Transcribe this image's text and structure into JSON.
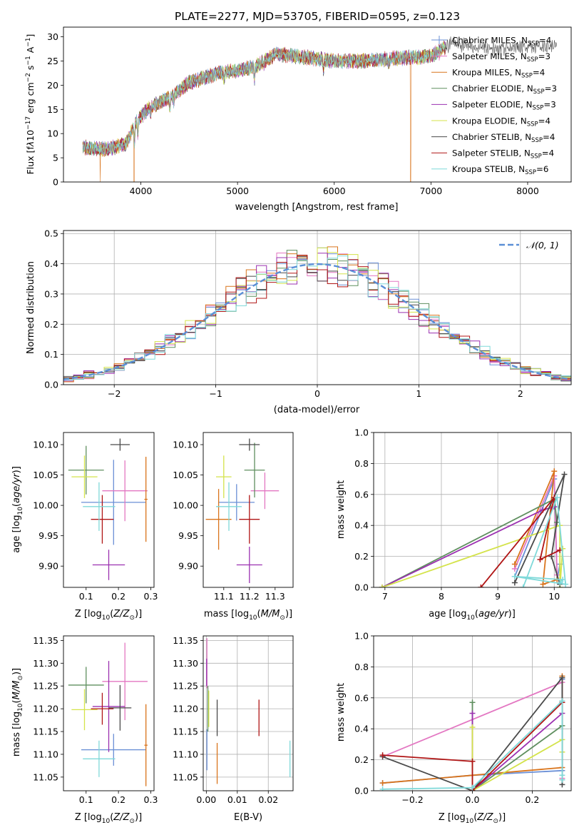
{
  "figure_title": "PLATE=2277, MJD=53705, FIBERID=0595, z=0.123",
  "colors": {
    "Chabrier MILES": "#6a8fd6",
    "Salpeter MILES": "#e377c2",
    "Kroupa MILES": "#d9741c",
    "Chabrier ELODIE": "#5f8f5f",
    "Salpeter ELODIE": "#9b30b0",
    "Kroupa ELODIE": "#d4e34a",
    "Chabrier STELIB": "#4a4a4a",
    "Salpeter STELIB": "#b01515",
    "Kroupa STELIB": "#7fd9d9"
  },
  "legend_labels": [
    {
      "pre": "Chabrier MILES, N",
      "sub": "SSP",
      "post": "=4"
    },
    {
      "pre": "Salpeter MILES, N",
      "sub": "SSP",
      "post": "=3"
    },
    {
      "pre": "Kroupa MILES, N",
      "sub": "SSP",
      "post": "=4"
    },
    {
      "pre": "Chabrier ELODIE, N",
      "sub": "SSP",
      "post": "=3"
    },
    {
      "pre": "Salpeter ELODIE, N",
      "sub": "SSP",
      "post": "=3"
    },
    {
      "pre": "Kroupa ELODIE, N",
      "sub": "SSP",
      "post": "=4"
    },
    {
      "pre": "Chabrier STELIB, N",
      "sub": "SSP",
      "post": "=4"
    },
    {
      "pre": "Salpeter STELIB, N",
      "sub": "SSP",
      "post": "=4"
    },
    {
      "pre": "Kroupa STELIB, N",
      "sub": "SSP",
      "post": "=6"
    }
  ],
  "chart_data": [
    {
      "id": "spectrum",
      "type": "line",
      "xlabel": "wavelength [Angstrom, rest frame]",
      "ylabel": "Flux [f_λ 10^-17 erg cm^-2 s^-1 A^-1]",
      "xlim": [
        3200,
        8450
      ],
      "ylim": [
        0,
        32
      ],
      "xticks": [
        4000,
        5000,
        6000,
        7000,
        8000
      ],
      "yticks": [
        0,
        5,
        10,
        15,
        20,
        25,
        30
      ],
      "continuum_knots": [
        [
          3400,
          7.2
        ],
        [
          3600,
          6.8
        ],
        [
          3700,
          7.0
        ],
        [
          3850,
          8.0
        ],
        [
          3950,
          12.5
        ],
        [
          4100,
          15.5
        ],
        [
          4300,
          17.5
        ],
        [
          4500,
          20.5
        ],
        [
          4800,
          22.5
        ],
        [
          5000,
          23.0
        ],
        [
          5200,
          24.0
        ],
        [
          5400,
          26.5
        ],
        [
          5800,
          25.5
        ],
        [
          6000,
          25.0
        ],
        [
          6300,
          25.0
        ],
        [
          6600,
          25.5
        ],
        [
          7000,
          26.0
        ],
        [
          7200,
          28.5
        ],
        [
          7500,
          28.0
        ],
        [
          7800,
          27.5
        ],
        [
          8000,
          28.0
        ],
        [
          8200,
          28.0
        ]
      ],
      "absorption_lines": [
        [
          3934,
          3.5
        ],
        [
          3969,
          3.0
        ],
        [
          4101,
          1.5
        ],
        [
          4300,
          2.5
        ],
        [
          4340,
          1.5
        ],
        [
          4861,
          1.5
        ],
        [
          5175,
          2.5
        ],
        [
          5270,
          1.0
        ],
        [
          5890,
          2.0
        ],
        [
          6563,
          1.5
        ]
      ],
      "model_ranges": [
        [
          3400,
          7150
        ],
        [
          3400,
          7150
        ],
        [
          3400,
          7150
        ],
        [
          3400,
          7150
        ],
        [
          3400,
          7150
        ],
        [
          3400,
          7150
        ],
        [
          3400,
          8300
        ],
        [
          3400,
          7150
        ],
        [
          3400,
          7150
        ]
      ],
      "dropouts": [
        {
          "model": 2,
          "x": [
            3580,
            3930,
            6790,
            7420
          ]
        }
      ],
      "legend_loc": "upper right"
    },
    {
      "id": "residuals",
      "type": "histogram",
      "xlabel": "(data-model)/error",
      "ylabel": "Normed distribution",
      "xlim": [
        -2.5,
        2.5
      ],
      "ylim": [
        0,
        0.51
      ],
      "xticks": [
        -2,
        -1,
        0,
        1,
        2
      ],
      "yticks": [
        0,
        0.1,
        0.2,
        0.3,
        0.4,
        0.5
      ],
      "bin_width": 0.1,
      "reference": {
        "name": "N(0,1)",
        "mean": 0,
        "sigma": 1
      },
      "grid": true,
      "legend_loc": "upper right"
    },
    {
      "id": "age_vs_Z",
      "type": "errorbar",
      "xlabel": "Z [log10(Z/Z⊙)]",
      "ylabel": "age  [log10(age/yr)]",
      "xlim": [
        0.03,
        0.31
      ],
      "ylim": [
        9.865,
        10.12
      ],
      "xticks": [
        0.1,
        0.2,
        0.3
      ],
      "yticks": [
        9.9,
        9.95,
        10.0,
        10.05,
        10.1
      ],
      "points": [
        {
          "x": 0.185,
          "xerr": 0.1,
          "y": 10.005,
          "yerr": 0.07
        },
        {
          "x": 0.22,
          "xerr": 0.07,
          "y": 10.024,
          "yerr": 0.05
        },
        {
          "x": 0.285,
          "xerr": 0.005,
          "y": 10.01,
          "yerr": 0.07
        },
        {
          "x": 0.1,
          "xerr": 0.055,
          "y": 10.058,
          "yerr": 0.04
        },
        {
          "x": 0.17,
          "xerr": 0.05,
          "y": 9.902,
          "yerr": 0.025
        },
        {
          "x": 0.095,
          "xerr": 0.04,
          "y": 10.047,
          "yerr": 0.035
        },
        {
          "x": 0.205,
          "xerr": 0.03,
          "y": 10.1,
          "yerr": 0.01
        },
        {
          "x": 0.15,
          "xerr": 0.035,
          "y": 9.977,
          "yerr": 0.04
        },
        {
          "x": 0.14,
          "xerr": 0.05,
          "y": 9.998,
          "yerr": 0.04
        }
      ]
    },
    {
      "id": "age_vs_mass",
      "type": "errorbar",
      "xlabel": "mass [log10(M/M⊙)]",
      "ylabel": "",
      "xlim": [
        11.02,
        11.37
      ],
      "ylim": [
        9.865,
        10.12
      ],
      "xticks": [
        11.1,
        11.2,
        11.3
      ],
      "yticks": [
        9.9,
        9.95,
        10.0,
        10.05,
        10.1
      ],
      "points": [
        {
          "x": 11.15,
          "xerr": 0.07,
          "y": 10.005,
          "yerr": 0.03
        },
        {
          "x": 11.26,
          "xerr": 0.055,
          "y": 10.024,
          "yerr": 0.03
        },
        {
          "x": 11.08,
          "xerr": 0.05,
          "y": 9.977,
          "yerr": 0.05
        },
        {
          "x": 11.22,
          "xerr": 0.04,
          "y": 10.058,
          "yerr": 0.045
        },
        {
          "x": 11.2,
          "xerr": 0.05,
          "y": 9.902,
          "yerr": 0.03
        },
        {
          "x": 11.1,
          "xerr": 0.03,
          "y": 10.047,
          "yerr": 0.035
        },
        {
          "x": 11.2,
          "xerr": 0.04,
          "y": 10.1,
          "yerr": 0.01
        },
        {
          "x": 11.2,
          "xerr": 0.04,
          "y": 9.977,
          "yerr": 0.04
        },
        {
          "x": 11.12,
          "xerr": 0.05,
          "y": 9.998,
          "yerr": 0.04
        }
      ]
    },
    {
      "id": "weight_vs_age",
      "type": "line",
      "xlabel": "age  [log10(age/yr)]",
      "ylabel": "mass weight",
      "xlim": [
        6.8,
        10.3
      ],
      "ylim": [
        0,
        1
      ],
      "xticks": [
        7,
        8,
        9,
        10
      ],
      "yticks": [
        0,
        0.2,
        0.4,
        0.6,
        0.8,
        1.0
      ],
      "grid": true,
      "series": [
        {
          "points": [
            [
              9.3,
              0.07
            ],
            [
              10.0,
              0.7
            ],
            [
              10.05,
              0.05
            ],
            [
              10.1,
              0.15
            ]
          ]
        },
        {
          "points": [
            [
              9.3,
              0.12
            ],
            [
              10.0,
              0.72
            ],
            [
              10.05,
              0.08
            ]
          ]
        },
        {
          "points": [
            [
              9.3,
              0.15
            ],
            [
              10.0,
              0.75
            ],
            [
              9.8,
              0.02
            ],
            [
              10.05,
              0.05
            ]
          ]
        },
        {
          "points": [
            [
              6.95,
              0.0
            ],
            [
              10.0,
              0.57
            ],
            [
              10.05,
              0.42
            ]
          ]
        },
        {
          "points": [
            [
              6.95,
              0.0
            ],
            [
              9.8,
              0.5
            ],
            [
              10.0,
              0.52
            ]
          ]
        },
        {
          "points": [
            [
              6.95,
              0.0
            ],
            [
              10.1,
              0.4
            ],
            [
              10.1,
              0.0
            ],
            [
              10.15,
              0.25
            ]
          ]
        },
        {
          "points": [
            [
              9.3,
              0.03
            ],
            [
              10.18,
              0.73
            ],
            [
              9.95,
              0.2
            ],
            [
              10.1,
              0.02
            ]
          ]
        },
        {
          "points": [
            [
              8.7,
              0.0
            ],
            [
              10.0,
              0.58
            ],
            [
              9.75,
              0.18
            ],
            [
              10.1,
              0.24
            ]
          ]
        },
        {
          "points": [
            [
              9.45,
              0.0
            ],
            [
              10.05,
              0.58
            ],
            [
              10.2,
              0.02
            ],
            [
              9.3,
              0.07
            ],
            [
              10.15,
              0.05
            ],
            [
              10.1,
              0.03
            ]
          ]
        }
      ]
    },
    {
      "id": "mass_vs_Z",
      "type": "errorbar",
      "xlabel": "Z [log10(Z/Z⊙)]",
      "ylabel": "mass [log10(M/M⊙)]",
      "xlim": [
        0.03,
        0.31
      ],
      "ylim": [
        11.02,
        11.36
      ],
      "xticks": [
        0.1,
        0.2,
        0.3
      ],
      "yticks": [
        11.05,
        11.1,
        11.15,
        11.2,
        11.25,
        11.3,
        11.35
      ],
      "points": [
        {
          "x": 0.185,
          "xerr": 0.1,
          "y": 11.11,
          "yerr": 0.035
        },
        {
          "x": 0.22,
          "xerr": 0.07,
          "y": 11.26,
          "yerr": 0.085
        },
        {
          "x": 0.285,
          "xerr": 0.005,
          "y": 11.12,
          "yerr": 0.09
        },
        {
          "x": 0.1,
          "xerr": 0.055,
          "y": 11.252,
          "yerr": 0.04
        },
        {
          "x": 0.17,
          "xerr": 0.05,
          "y": 11.205,
          "yerr": 0.1
        },
        {
          "x": 0.095,
          "xerr": 0.04,
          "y": 11.198,
          "yerr": 0.045
        },
        {
          "x": 0.205,
          "xerr": 0.035,
          "y": 11.202,
          "yerr": 0.05
        },
        {
          "x": 0.15,
          "xerr": 0.035,
          "y": 11.2,
          "yerr": 0.035
        },
        {
          "x": 0.14,
          "xerr": 0.05,
          "y": 11.09,
          "yerr": 0.04
        }
      ]
    },
    {
      "id": "mass_vs_ebv",
      "type": "errorbar",
      "xlabel": "E(B-V)",
      "ylabel": "",
      "xlim": [
        -0.001,
        0.028
      ],
      "ylim": [
        11.02,
        11.36
      ],
      "xticks": [
        0.0,
        0.01,
        0.02
      ],
      "yticks": [
        11.05,
        11.1,
        11.15,
        11.2,
        11.25,
        11.3,
        11.35
      ],
      "grid": true,
      "points": [
        {
          "x": 0.0002,
          "xerr": 0.0,
          "y": 11.11,
          "yerr": 0.045
        },
        {
          "x": 0.0002,
          "xerr": 0.0,
          "y": 11.3,
          "yerr": 0.055
        },
        {
          "x": 0.0035,
          "xerr": 0.0,
          "y": 11.08,
          "yerr": 0.045
        },
        {
          "x": 0.0005,
          "xerr": 0.0,
          "y": 11.2,
          "yerr": 0.05
        },
        {
          "x": 0.0001,
          "xerr": 0.0,
          "y": 11.28,
          "yerr": 0.03
        },
        {
          "x": 0.0008,
          "xerr": 0.0,
          "y": 11.2,
          "yerr": 0.04
        },
        {
          "x": 0.0035,
          "xerr": 0.0,
          "y": 11.18,
          "yerr": 0.04
        },
        {
          "x": 0.017,
          "xerr": 0.0,
          "y": 11.18,
          "yerr": 0.04
        },
        {
          "x": 0.027,
          "xerr": 0.0,
          "y": 11.09,
          "yerr": 0.04
        }
      ]
    },
    {
      "id": "weight_vs_Z",
      "type": "line",
      "xlabel": "Z [log10(Z/Z⊙)]",
      "ylabel": "mass weight",
      "xlim": [
        -0.33,
        0.33
      ],
      "ylim": [
        0,
        1
      ],
      "xticks": [
        -0.2,
        0.0,
        0.2
      ],
      "yticks": [
        0,
        0.2,
        0.4,
        0.6,
        0.8,
        1.0
      ],
      "grid": true,
      "series": [
        {
          "points": [
            [
              -0.3,
              0.05
            ],
            [
              0.0,
              0.1
            ],
            [
              0.3,
              0.13
            ],
            [
              0.3,
              0.72
            ]
          ]
        },
        {
          "points": [
            [
              -0.3,
              0.22
            ],
            [
              0.3,
              0.7
            ],
            [
              0.3,
              0.08
            ]
          ]
        },
        {
          "points": [
            [
              -0.3,
              0.05
            ],
            [
              0.0,
              0.1
            ],
            [
              0.3,
              0.15
            ],
            [
              0.3,
              0.74
            ]
          ]
        },
        {
          "points": [
            [
              0.0,
              0.57
            ],
            [
              0.0,
              0.0
            ],
            [
              0.3,
              0.42
            ]
          ]
        },
        {
          "points": [
            [
              0.0,
              0.5
            ],
            [
              0.0,
              0.0
            ],
            [
              0.3,
              0.5
            ]
          ]
        },
        {
          "points": [
            [
              0.0,
              0.41
            ],
            [
              0.0,
              0.0
            ],
            [
              0.3,
              0.33
            ],
            [
              0.3,
              0.25
            ]
          ]
        },
        {
          "points": [
            [
              -0.3,
              0.22
            ],
            [
              0.0,
              0.0
            ],
            [
              0.3,
              0.73
            ],
            [
              0.3,
              0.04
            ]
          ]
        },
        {
          "points": [
            [
              -0.3,
              0.23
            ],
            [
              0.0,
              0.19
            ],
            [
              0.0,
              0.0
            ],
            [
              0.3,
              0.57
            ]
          ]
        },
        {
          "points": [
            [
              -0.3,
              0.01
            ],
            [
              0.0,
              0.02
            ],
            [
              0.3,
              0.58
            ],
            [
              0.3,
              0.07
            ],
            [
              0.3,
              0.1
            ]
          ]
        }
      ]
    }
  ]
}
